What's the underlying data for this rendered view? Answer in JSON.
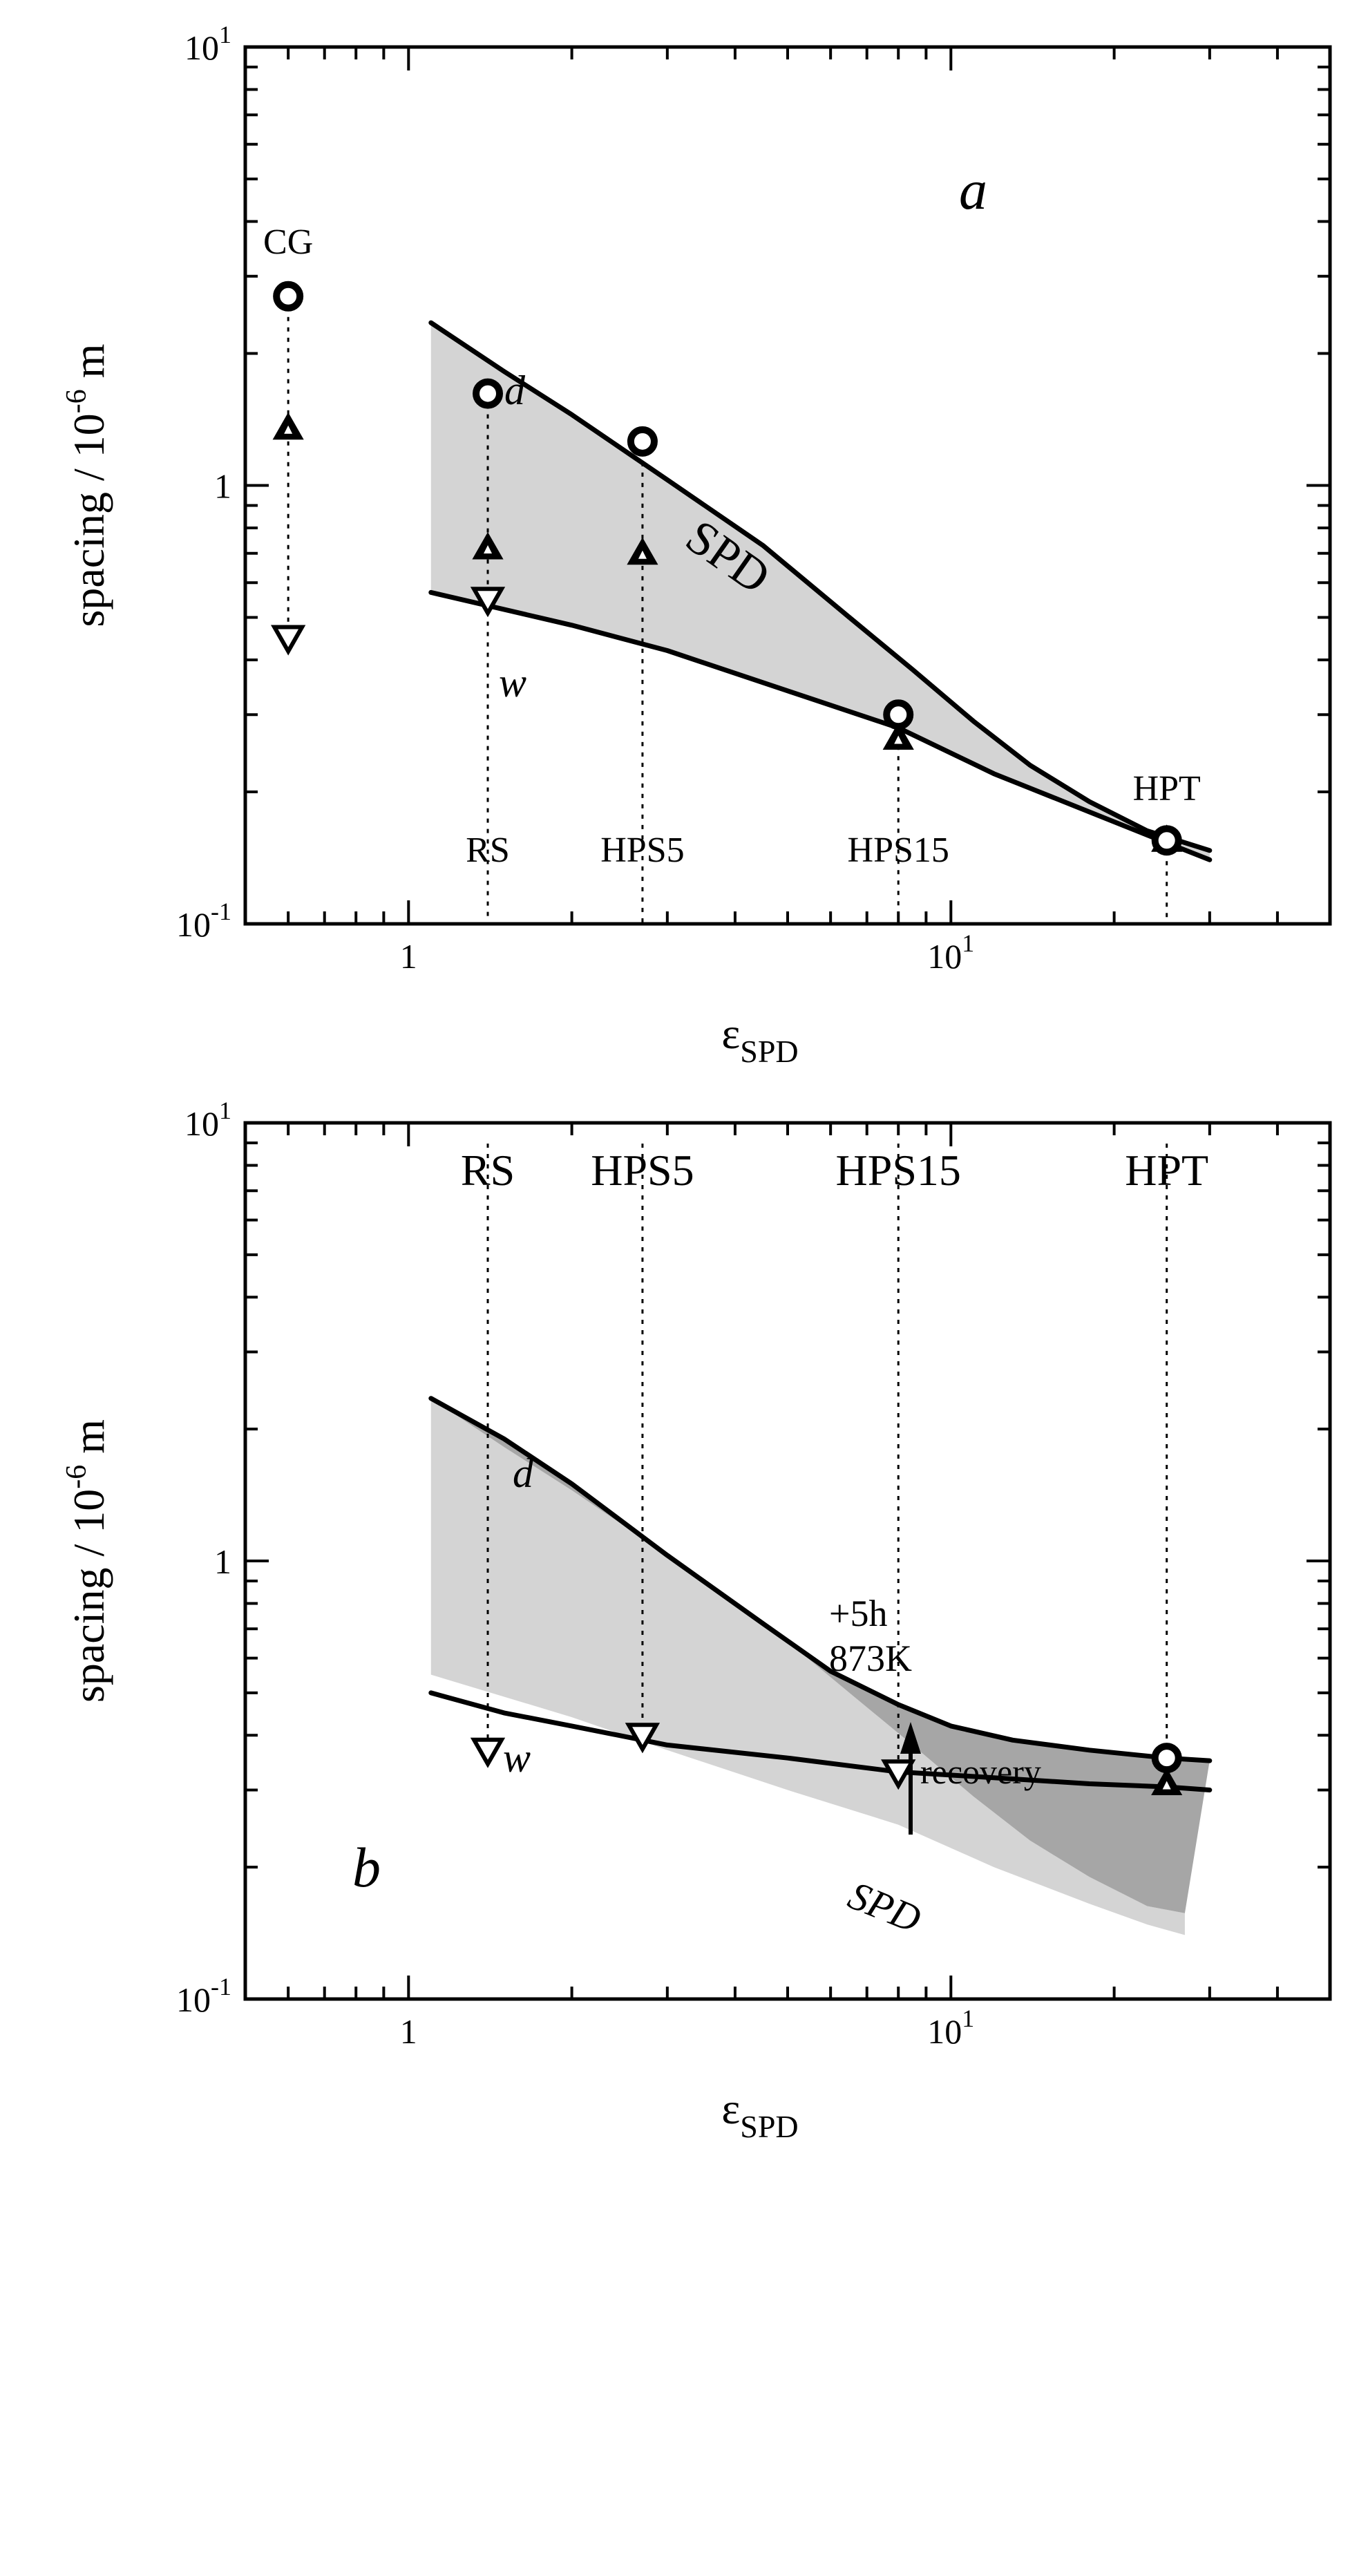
{
  "colors": {
    "light_band": "#d4d4d4",
    "dark_band": "#a6a6a6",
    "ink": "#000000",
    "background": "#ffffff"
  },
  "chart_data": [
    {
      "panel": "a",
      "type": "line",
      "xscale": "log",
      "yscale": "log",
      "xlim": [
        0.5,
        50
      ],
      "ylim": [
        0.1,
        10
      ],
      "xlabel_base": "ε",
      "xlabel_sub": "SPD",
      "ylabel_main": "spacing / 10",
      "ylabel_exp": "-6",
      "ylabel_unit": " m",
      "xticks": [
        {
          "base": "1",
          "exp": ""
        },
        {
          "base": "10",
          "exp": "1"
        }
      ],
      "yticks": [
        {
          "base": "10",
          "exp": "-1"
        },
        {
          "base": "1",
          "exp": ""
        },
        {
          "base": "10",
          "exp": "1"
        }
      ],
      "series": [
        {
          "name": "d",
          "style": "curve",
          "x": [
            1.1,
            1.5,
            2.0,
            3.0,
            4.5,
            6.5,
            8.5,
            11,
            14,
            18,
            23,
            30
          ],
          "y": [
            2.35,
            1.82,
            1.45,
            1.03,
            0.73,
            0.5,
            0.38,
            0.29,
            0.23,
            0.19,
            0.163,
            0.147
          ]
        },
        {
          "name": "w",
          "style": "curve",
          "x": [
            1.1,
            2.0,
            3.0,
            5.0,
            8.0,
            12,
            18,
            25,
            30
          ],
          "y": [
            0.57,
            0.48,
            0.42,
            0.34,
            0.28,
            0.22,
            0.18,
            0.153,
            0.14
          ]
        }
      ],
      "bands": [
        {
          "name": "SPD band",
          "upper": "d",
          "lower": "w",
          "shade": "light_band"
        }
      ],
      "markers": [
        {
          "label": "CG",
          "x": 0.6,
          "circle": 2.7,
          "up_triangle": 1.35,
          "down_triangle": 0.45
        },
        {
          "label": "RS",
          "x": 1.4,
          "circle": 1.62,
          "up_triangle": 0.72,
          "down_triangle": 0.55
        },
        {
          "label": "HPS5",
          "x": 2.7,
          "circle": 1.26,
          "up_triangle": 0.7
        },
        {
          "label": "HPS15",
          "x": 8.0,
          "circle": 0.3,
          "up_triangle": 0.265
        },
        {
          "label": "HPT",
          "x": 25.0,
          "circle": 0.155,
          "up_triangle": 0.155
        }
      ],
      "annotations": [
        {
          "text": "a",
          "style": "italic"
        },
        {
          "text": "d",
          "style": "italic"
        },
        {
          "text": "w",
          "style": "italic"
        },
        {
          "text": "SPD",
          "style": "rotated"
        }
      ]
    },
    {
      "panel": "b",
      "type": "line",
      "xscale": "log",
      "yscale": "log",
      "xlim": [
        0.5,
        50
      ],
      "ylim": [
        0.1,
        10
      ],
      "xlabel_base": "ε",
      "xlabel_sub": "SPD",
      "ylabel_main": "spacing / 10",
      "ylabel_exp": "-6",
      "ylabel_unit": " m",
      "xticks": [
        {
          "base": "1",
          "exp": ""
        },
        {
          "base": "10",
          "exp": "1"
        }
      ],
      "yticks": [
        {
          "base": "10",
          "exp": "-1"
        },
        {
          "base": "1",
          "exp": ""
        },
        {
          "base": "10",
          "exp": "1"
        }
      ],
      "series": [
        {
          "name": "d (+5h 873K)",
          "style": "curve",
          "x": [
            1.1,
            1.5,
            2.0,
            3.0,
            4.5,
            6.0,
            8.0,
            10,
            13,
            18,
            25,
            30
          ],
          "y": [
            2.35,
            1.9,
            1.5,
            1.03,
            0.72,
            0.56,
            0.47,
            0.42,
            0.39,
            0.37,
            0.355,
            0.35
          ]
        },
        {
          "name": "w (+5h 873K)",
          "style": "curve",
          "x": [
            1.1,
            1.5,
            2.0,
            3.0,
            5.0,
            8.0,
            12,
            18,
            25,
            30
          ],
          "y": [
            0.5,
            0.45,
            0.42,
            0.38,
            0.355,
            0.33,
            0.32,
            0.31,
            0.305,
            0.3
          ]
        }
      ],
      "bands": [
        {
          "name": "SPD (as-deformed)",
          "upper_x": [
            1.1,
            1.5,
            2.0,
            3.0,
            4.5,
            6.5,
            8.5,
            11,
            14,
            18,
            23,
            27
          ],
          "upper_y": [
            2.35,
            1.82,
            1.45,
            1.03,
            0.73,
            0.5,
            0.38,
            0.29,
            0.23,
            0.19,
            0.163,
            0.157
          ],
          "lower_x": [
            1.1,
            2.0,
            3.0,
            5.0,
            8.0,
            12,
            18,
            23,
            27
          ],
          "lower_y": [
            0.55,
            0.44,
            0.37,
            0.3,
            0.25,
            0.2,
            0.165,
            0.148,
            0.14
          ],
          "shade": "light_band"
        },
        {
          "name": "overlap",
          "upper": "d (+5h 873K)",
          "lower_x": [
            1.1,
            1.5,
            2.0,
            3.0,
            4.5,
            6.5,
            8.5,
            11,
            14,
            18,
            23,
            27
          ],
          "lower_y": [
            2.35,
            1.82,
            1.45,
            1.03,
            0.73,
            0.5,
            0.38,
            0.29,
            0.23,
            0.19,
            0.163,
            0.157
          ],
          "shade": "dark_band"
        }
      ],
      "markers": [
        {
          "label": "RS",
          "x": 1.4,
          "down_triangle": 0.37
        },
        {
          "label": "HPS5",
          "x": 2.7,
          "down_triangle": 0.4
        },
        {
          "label": "HPS15",
          "x": 8.0,
          "down_triangle": 0.33
        },
        {
          "label": "HPT",
          "x": 25.0,
          "circle": 0.355,
          "up_triangle": 0.31
        }
      ],
      "annotations": [
        {
          "text": "b",
          "style": "italic"
        },
        {
          "text": "d",
          "style": "italic"
        },
        {
          "text": "w",
          "style": "italic"
        },
        {
          "text": "+5h",
          "style": "plain"
        },
        {
          "text": "873K",
          "style": "plain"
        },
        {
          "text": "recovery",
          "style": "plain"
        },
        {
          "text": "SPD",
          "style": "rotated-italic"
        }
      ]
    }
  ]
}
